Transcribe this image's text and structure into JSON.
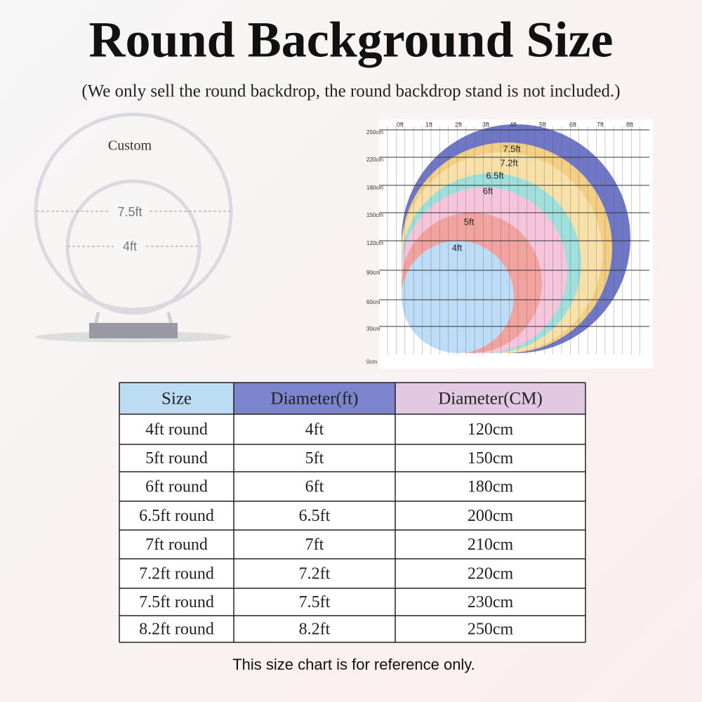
{
  "header": {
    "title": "Round Background Size",
    "subtitle": "(We only sell the round backdrop, the round backdrop stand is not included.)"
  },
  "product": {
    "label": "Custom",
    "outer": "7.5ft",
    "inner": "4ft"
  },
  "diagram": {
    "x_labels": [
      "0ft",
      "1ft",
      "2ft",
      "3ft",
      "4ft",
      "5ft",
      "6ft",
      "7ft",
      "8ft"
    ],
    "y_labels": [
      "250cm",
      "220cm",
      "180cm",
      "150cm",
      "120cm",
      "90cm",
      "60cm",
      "30cm",
      "0cm"
    ],
    "circle_labels": [
      "7.5ft",
      "7.2ft",
      "6.5ft",
      "6ft",
      "5ft",
      "4ft"
    ]
  },
  "table": {
    "header": [
      "Size",
      "Diameter(ft)",
      "Diameter(CM)"
    ],
    "rows": [
      [
        "4ft round",
        "4ft",
        "120cm"
      ],
      [
        "5ft round",
        "5ft",
        "150cm"
      ],
      [
        "6ft round",
        "6ft",
        "180cm"
      ],
      [
        "6.5ft round",
        "6.5ft",
        "200cm"
      ],
      [
        "7ft round",
        "7ft",
        "210cm"
      ],
      [
        "7.2ft round",
        "7.2ft",
        "220cm"
      ],
      [
        "7.5ft round",
        "7.5ft",
        "230cm"
      ],
      [
        "8.2ft round",
        "8.2ft",
        "250cm"
      ]
    ]
  },
  "footer": "This size chart is for reference only."
}
